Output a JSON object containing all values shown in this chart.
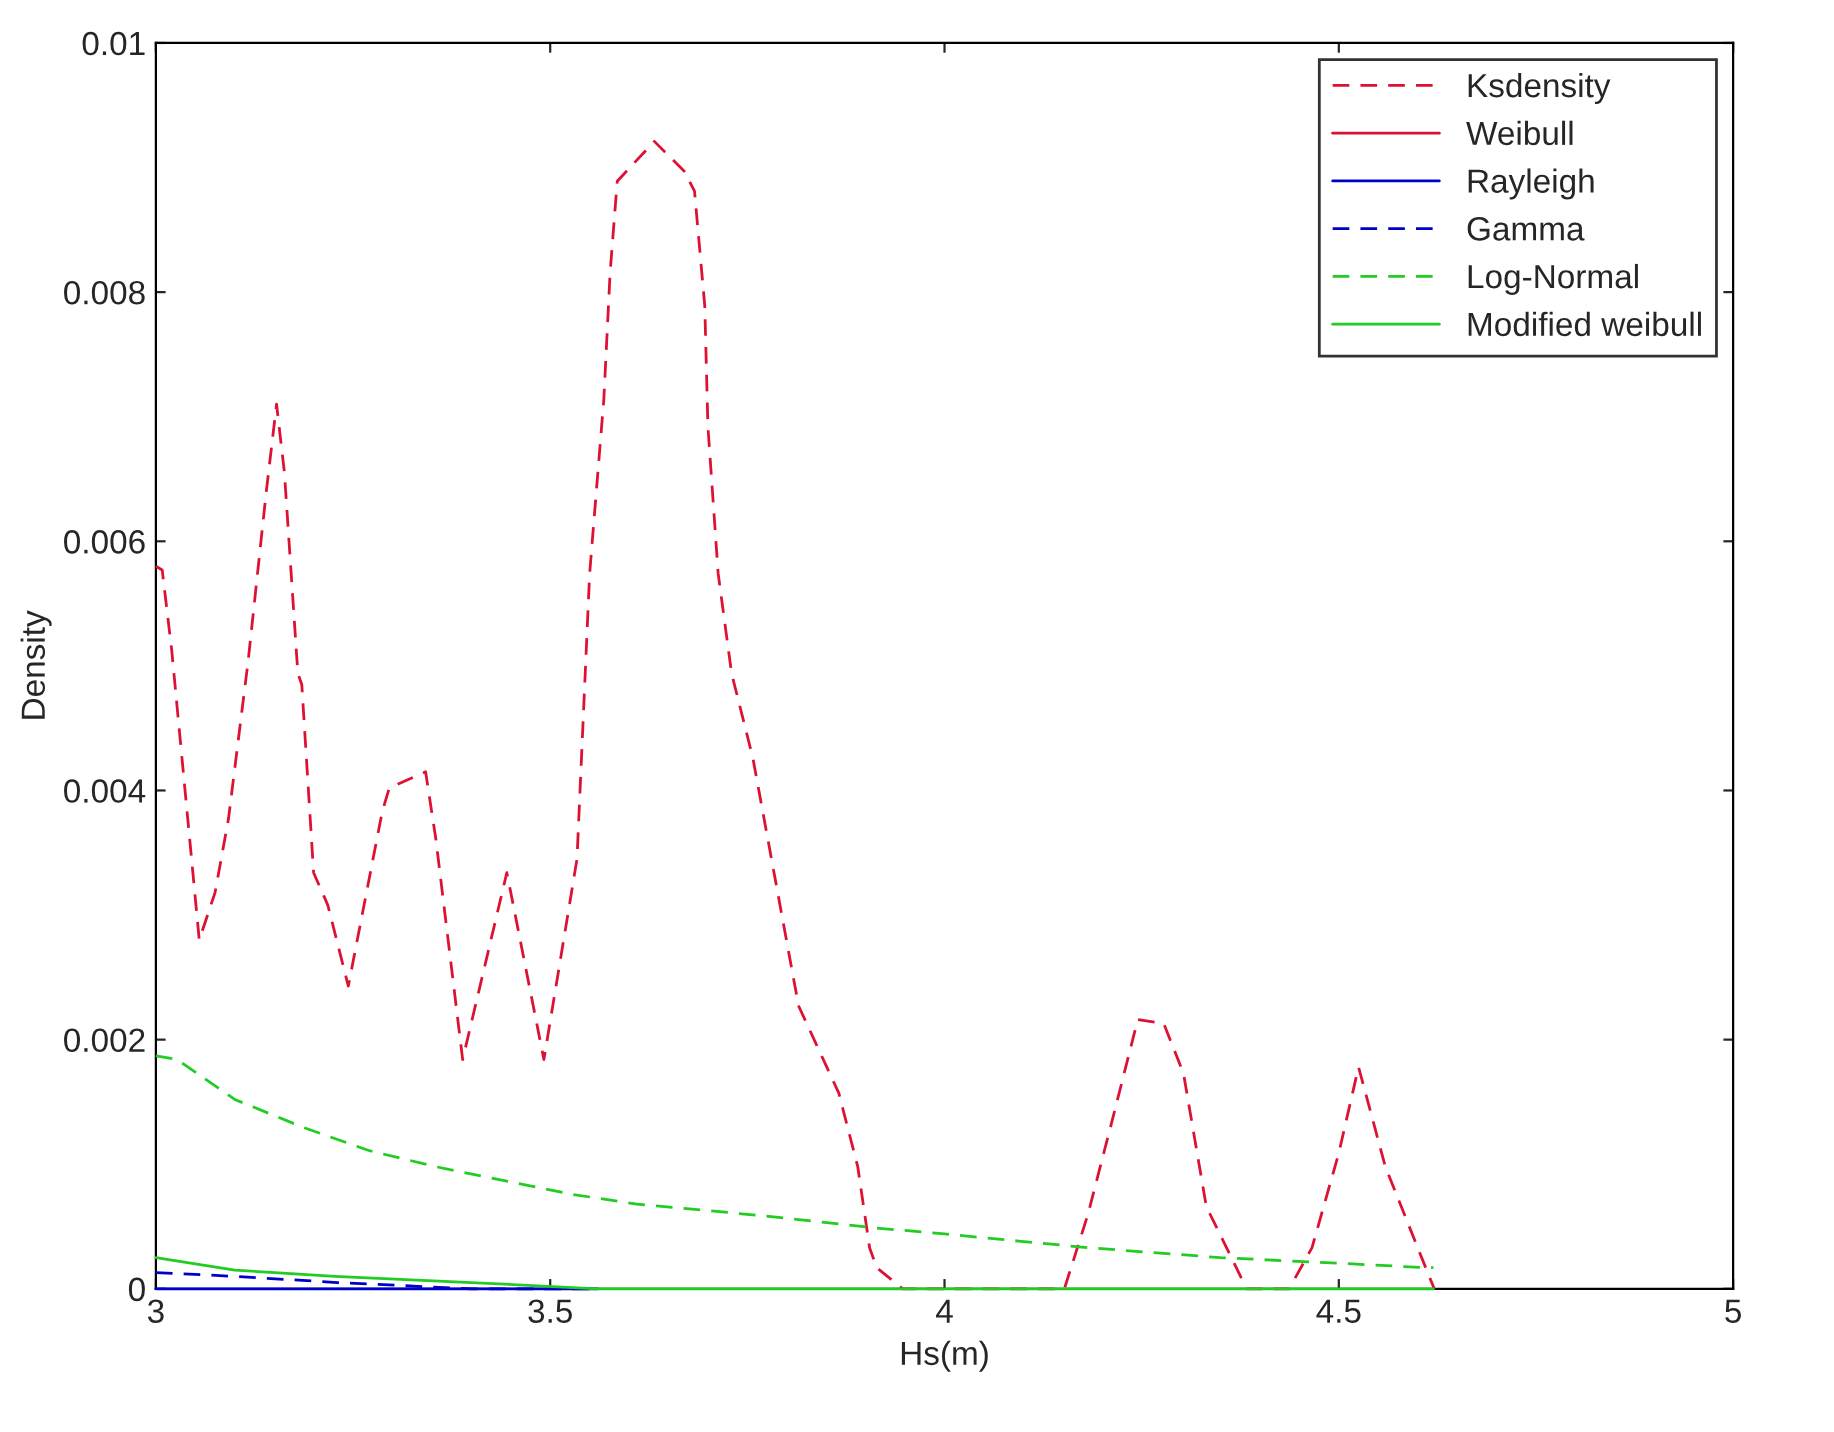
{
  "chart_data": {
    "type": "line",
    "xlabel": "Hs(m)",
    "ylabel": "Density",
    "xlim": [
      3,
      5
    ],
    "xticks": [
      3,
      3.5,
      4,
      4.5,
      5
    ],
    "ylim": [
      0,
      0.01
    ],
    "yticks": [
      0,
      0.002,
      0.004,
      0.006,
      0.008,
      0.01
    ],
    "grid": false,
    "legend": "top right",
    "series": [
      {
        "name": "Ksdensity",
        "color": "#dd1133",
        "line_style": "dashed",
        "x": [
          3.0,
          3.008,
          3.02,
          3.055,
          3.075,
          3.092,
          3.117,
          3.14,
          3.153,
          3.163,
          3.18,
          3.185,
          3.2,
          3.218,
          3.244,
          3.287,
          3.296,
          3.342,
          3.355,
          3.389,
          3.445,
          3.492,
          3.534,
          3.55,
          3.568,
          3.576,
          3.585,
          3.632,
          3.67,
          3.683,
          3.696,
          3.7,
          3.713,
          3.73,
          3.757,
          3.815,
          3.866,
          3.89,
          3.905,
          3.914,
          3.947,
          4.0,
          4.152,
          4.182,
          4.215,
          4.245,
          4.278,
          4.303,
          4.332,
          4.37,
          4.383,
          4.437,
          4.466,
          4.5,
          4.525,
          4.559,
          4.6,
          4.621
        ],
        "values": [
          0.0058,
          0.00577,
          0.00513,
          0.0028,
          0.00318,
          0.00377,
          0.00504,
          0.0064,
          0.0071,
          0.00655,
          0.00494,
          0.00485,
          0.00334,
          0.00308,
          0.00243,
          0.00383,
          0.00402,
          0.00415,
          0.00361,
          0.00184,
          0.00334,
          0.00184,
          0.00345,
          0.00574,
          0.00714,
          0.00816,
          0.00889,
          0.00921,
          0.00897,
          0.00881,
          0.00789,
          0.00692,
          0.00574,
          0.00494,
          0.00426,
          0.00227,
          0.00157,
          0.00098,
          0.00033,
          0.00017,
          0,
          0,
          0,
          0.0006,
          0.00141,
          0.00216,
          0.00213,
          0.00173,
          0.00066,
          0.00017,
          0,
          0,
          0.00033,
          0.00109,
          0.00178,
          0.00098,
          0.00033,
          0
        ]
      },
      {
        "name": "Weibull",
        "color": "#dd1133",
        "line_style": "solid"
      },
      {
        "name": "Rayleigh",
        "color": "#0000cc",
        "line_style": "solid",
        "x": [
          3.0,
          3.2,
          3.4,
          3.56
        ],
        "values": [
          0,
          0,
          0,
          0
        ]
      },
      {
        "name": "Gamma",
        "color": "#0000cc",
        "line_style": "dashed",
        "x": [
          3.0,
          3.1,
          3.23,
          3.4,
          3.56
        ],
        "values": [
          0.00013,
          0.0001,
          5e-05,
          0,
          0
        ]
      },
      {
        "name": "Log-Normal",
        "color": "#22cc22",
        "line_style": "dashed",
        "x": [
          3.0,
          3.027,
          3.1,
          3.185,
          3.27,
          3.355,
          3.44,
          3.526,
          3.61,
          3.696,
          3.78,
          3.91,
          4.0,
          4.182,
          4.35,
          4.517,
          4.609,
          4.62
        ],
        "values": [
          0.00187,
          0.00184,
          0.00152,
          0.0013,
          0.00111,
          0.00098,
          0.00087,
          0.00076,
          0.00068,
          0.00063,
          0.00058,
          0.00049,
          0.00044,
          0.00033,
          0.00025,
          0.0002,
          0.00017,
          0.00017
        ]
      },
      {
        "name": "Modified weibull",
        "color": "#22cc22",
        "line_style": "solid",
        "x": [
          3.0,
          3.1,
          3.227,
          3.4,
          3.56,
          4.62
        ],
        "values": [
          0.00025,
          0.00015,
          0.0001,
          5e-05,
          0,
          0
        ]
      }
    ]
  }
}
